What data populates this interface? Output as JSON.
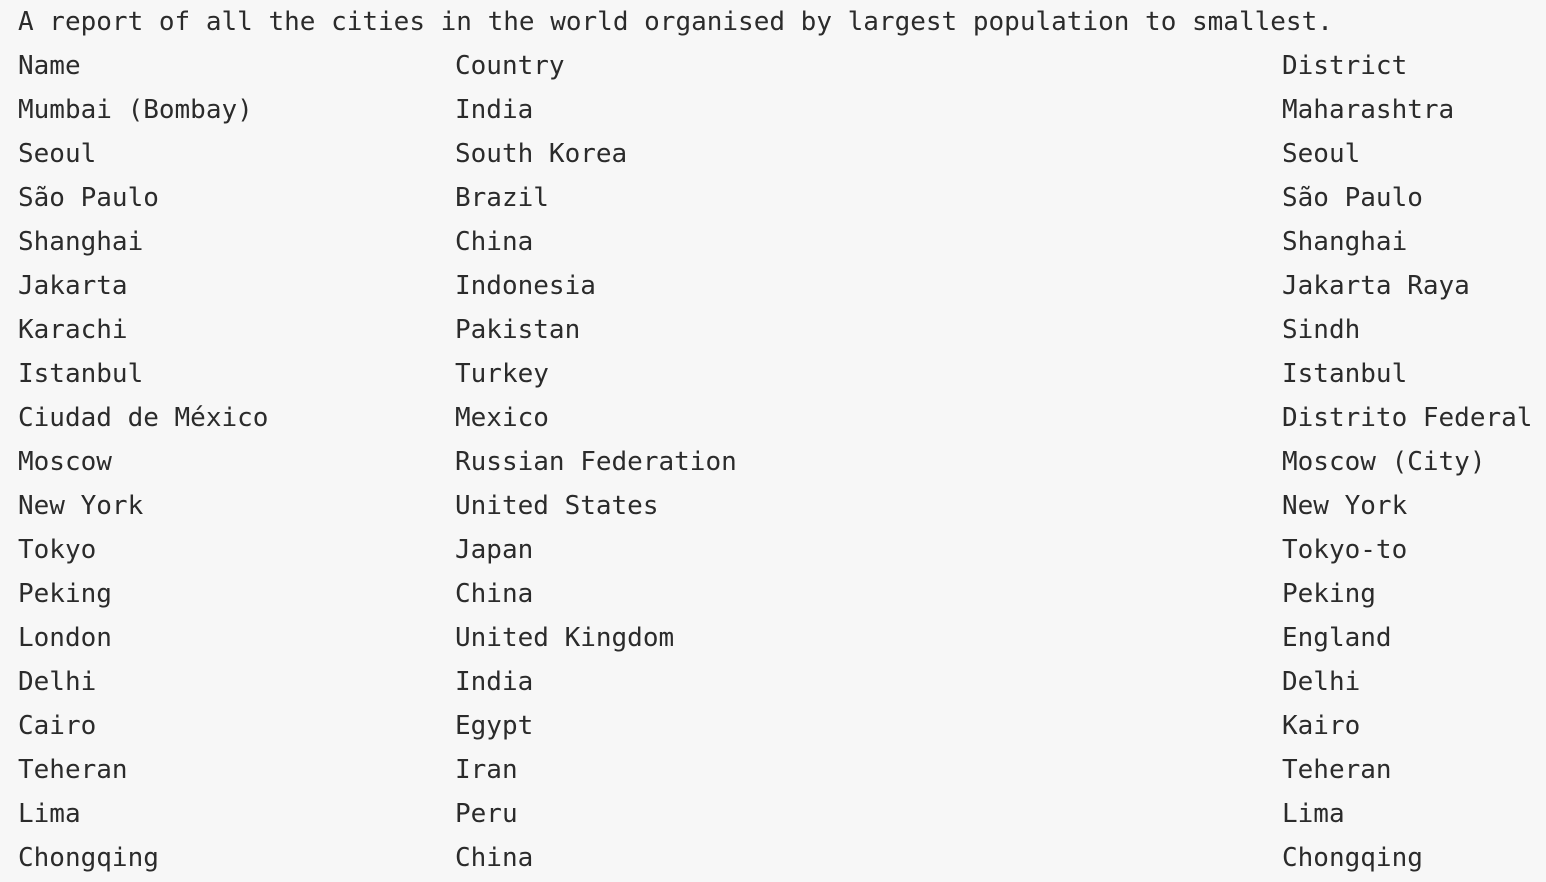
{
  "report": {
    "title": "A report of all the cities in the world organised by largest population to smallest.",
    "headers": {
      "name": "Name",
      "country": "Country",
      "district": "District"
    },
    "rows": [
      {
        "name": "Mumbai (Bombay)",
        "country": "India",
        "district": "Maharashtra"
      },
      {
        "name": "Seoul",
        "country": "South Korea",
        "district": "Seoul"
      },
      {
        "name": "São Paulo",
        "country": "Brazil",
        "district": "São Paulo"
      },
      {
        "name": "Shanghai",
        "country": "China",
        "district": "Shanghai"
      },
      {
        "name": "Jakarta",
        "country": "Indonesia",
        "district": "Jakarta Raya"
      },
      {
        "name": "Karachi",
        "country": "Pakistan",
        "district": "Sindh"
      },
      {
        "name": "Istanbul",
        "country": "Turkey",
        "district": "Istanbul"
      },
      {
        "name": "Ciudad de México",
        "country": "Mexico",
        "district": "Distrito Federal"
      },
      {
        "name": "Moscow",
        "country": "Russian Federation",
        "district": "Moscow (City)"
      },
      {
        "name": "New York",
        "country": "United States",
        "district": "New York"
      },
      {
        "name": "Tokyo",
        "country": "Japan",
        "district": "Tokyo-to"
      },
      {
        "name": "Peking",
        "country": "China",
        "district": "Peking"
      },
      {
        "name": "London",
        "country": "United Kingdom",
        "district": "England"
      },
      {
        "name": "Delhi",
        "country": "India",
        "district": "Delhi"
      },
      {
        "name": "Cairo",
        "country": "Egypt",
        "district": "Kairo"
      },
      {
        "name": "Teheran",
        "country": "Iran",
        "district": "Teheran"
      },
      {
        "name": "Lima",
        "country": "Peru",
        "district": "Lima"
      },
      {
        "name": "Chongqing",
        "country": "China",
        "district": "Chongqing"
      }
    ]
  }
}
